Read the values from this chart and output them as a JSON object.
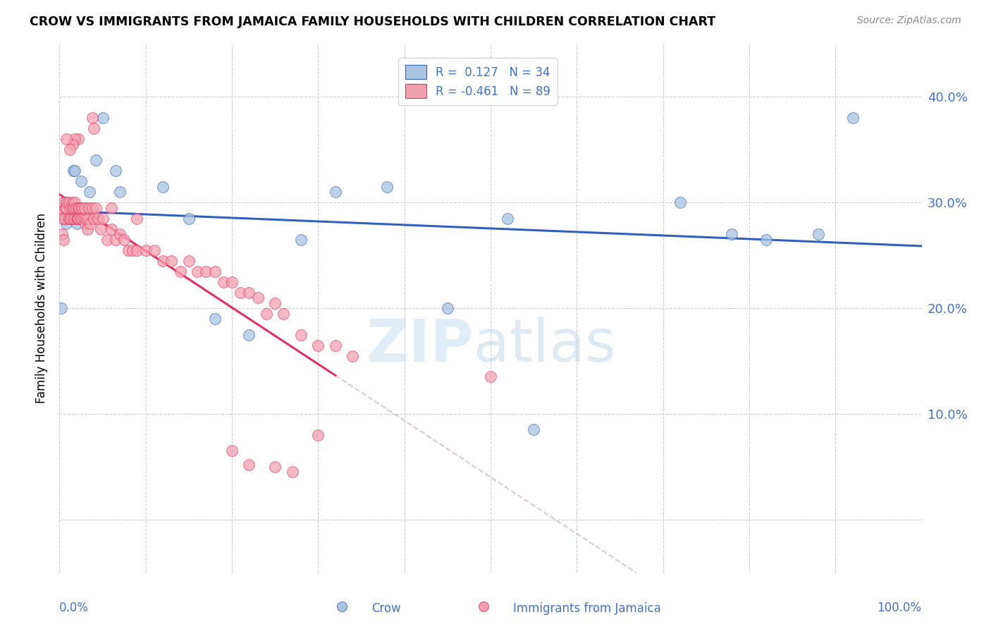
{
  "title": "CROW VS IMMIGRANTS FROM JAMAICA FAMILY HOUSEHOLDS WITH CHILDREN CORRELATION CHART",
  "source": "Source: ZipAtlas.com",
  "ylabel": "Family Households with Children",
  "xlim": [
    0,
    1.0
  ],
  "ylim": [
    -0.05,
    0.45
  ],
  "ytick_vals": [
    0,
    0.1,
    0.2,
    0.3,
    0.4
  ],
  "ytick_labels": [
    "",
    "10.0%",
    "20.0%",
    "30.0%",
    "40.0%"
  ],
  "xtick_vals": [
    0,
    0.1,
    0.2,
    0.3,
    0.4,
    0.5,
    0.6,
    0.7,
    0.8,
    0.9,
    1.0
  ],
  "crow_color": "#a8c4e0",
  "jam_color": "#f4a0b0",
  "crow_line_color": "#3060c0",
  "jam_line_color": "#e03060",
  "crow_points_x": [
    0.002,
    0.006,
    0.008,
    0.01,
    0.012,
    0.014,
    0.016,
    0.018,
    0.02,
    0.022,
    0.025,
    0.03,
    0.032,
    0.035,
    0.042,
    0.05,
    0.005,
    0.065,
    0.07,
    0.12,
    0.15,
    0.18,
    0.22,
    0.28,
    0.32,
    0.38,
    0.45,
    0.52,
    0.55,
    0.72,
    0.78,
    0.82,
    0.88,
    0.92
  ],
  "crow_points_y": [
    0.2,
    0.3,
    0.28,
    0.295,
    0.295,
    0.295,
    0.33,
    0.33,
    0.28,
    0.295,
    0.32,
    0.295,
    0.285,
    0.31,
    0.34,
    0.38,
    0.295,
    0.33,
    0.31,
    0.315,
    0.285,
    0.19,
    0.175,
    0.265,
    0.31,
    0.315,
    0.2,
    0.285,
    0.085,
    0.3,
    0.27,
    0.265,
    0.27,
    0.38
  ],
  "jam_points_x": [
    0.001,
    0.002,
    0.003,
    0.004,
    0.005,
    0.005,
    0.006,
    0.007,
    0.008,
    0.009,
    0.01,
    0.011,
    0.012,
    0.013,
    0.014,
    0.015,
    0.015,
    0.016,
    0.017,
    0.018,
    0.018,
    0.019,
    0.02,
    0.021,
    0.022,
    0.022,
    0.023,
    0.024,
    0.025,
    0.026,
    0.027,
    0.028,
    0.029,
    0.03,
    0.031,
    0.032,
    0.033,
    0.034,
    0.036,
    0.038,
    0.04,
    0.042,
    0.045,
    0.048,
    0.05,
    0.055,
    0.06,
    0.065,
    0.07,
    0.075,
    0.08,
    0.085,
    0.09,
    0.1,
    0.11,
    0.12,
    0.13,
    0.14,
    0.15,
    0.16,
    0.17,
    0.18,
    0.19,
    0.2,
    0.21,
    0.22,
    0.23,
    0.24,
    0.25,
    0.26,
    0.28,
    0.3,
    0.32,
    0.34,
    0.038,
    0.06,
    0.09,
    0.04,
    0.022,
    0.018,
    0.015,
    0.012,
    0.008,
    0.2,
    0.22,
    0.25,
    0.27,
    0.3,
    0.5
  ],
  "jam_points_y": [
    0.295,
    0.295,
    0.27,
    0.285,
    0.3,
    0.265,
    0.285,
    0.295,
    0.295,
    0.3,
    0.285,
    0.3,
    0.285,
    0.295,
    0.285,
    0.3,
    0.295,
    0.285,
    0.295,
    0.285,
    0.3,
    0.295,
    0.285,
    0.285,
    0.295,
    0.285,
    0.295,
    0.285,
    0.295,
    0.285,
    0.295,
    0.285,
    0.295,
    0.28,
    0.285,
    0.275,
    0.285,
    0.295,
    0.28,
    0.295,
    0.285,
    0.295,
    0.285,
    0.275,
    0.285,
    0.265,
    0.275,
    0.265,
    0.27,
    0.265,
    0.255,
    0.255,
    0.255,
    0.255,
    0.255,
    0.245,
    0.245,
    0.235,
    0.245,
    0.235,
    0.235,
    0.235,
    0.225,
    0.225,
    0.215,
    0.215,
    0.21,
    0.195,
    0.205,
    0.195,
    0.175,
    0.165,
    0.165,
    0.155,
    0.38,
    0.295,
    0.285,
    0.37,
    0.36,
    0.36,
    0.355,
    0.35,
    0.36,
    0.065,
    0.052,
    0.05,
    0.045,
    0.08,
    0.135
  ]
}
